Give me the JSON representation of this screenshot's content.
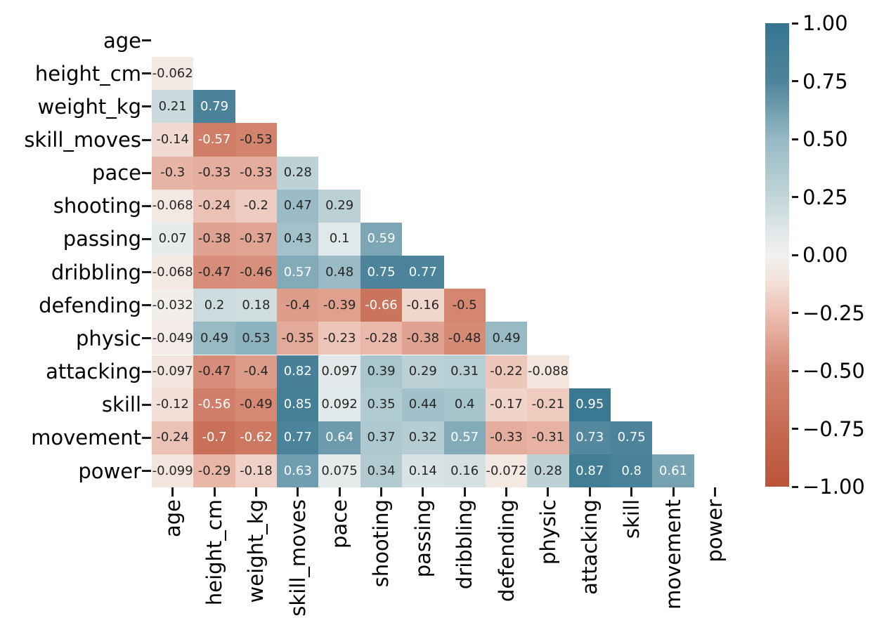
{
  "figure": {
    "background": "#ffffff",
    "text_color": "#000000"
  },
  "chart_data": {
    "type": "heatmap",
    "subtype": "correlation-matrix-lower-triangle",
    "mask": "upper triangle including diagonal is blank",
    "labels": [
      "age",
      "height_cm",
      "weight_kg",
      "skill_moves",
      "pace",
      "shooting",
      "passing",
      "dribbling",
      "defending",
      "physic",
      "attacking",
      "skill",
      "movement",
      "power"
    ],
    "matrix": [
      [],
      [
        "-0.062"
      ],
      [
        "0.21",
        "0.79"
      ],
      [
        "-0.14",
        "-0.57",
        "-0.53"
      ],
      [
        "-0.3",
        "-0.33",
        "-0.33",
        "0.28"
      ],
      [
        "-0.068",
        "-0.24",
        "-0.2",
        "0.47",
        "0.29"
      ],
      [
        "0.07",
        "-0.38",
        "-0.37",
        "0.43",
        "0.1",
        "0.59"
      ],
      [
        "-0.068",
        "-0.47",
        "-0.46",
        "0.57",
        "0.48",
        "0.75",
        "0.77"
      ],
      [
        "-0.032",
        "0.2",
        "0.18",
        "-0.4",
        "-0.39",
        "-0.66",
        "-0.16",
        "-0.5"
      ],
      [
        "-0.049",
        "0.49",
        "0.53",
        "-0.35",
        "-0.23",
        "-0.28",
        "-0.38",
        "-0.48",
        "0.49"
      ],
      [
        "-0.097",
        "-0.47",
        "-0.4",
        "0.82",
        "0.097",
        "0.39",
        "0.29",
        "0.31",
        "-0.22",
        "-0.088"
      ],
      [
        "-0.12",
        "-0.56",
        "-0.49",
        "0.85",
        "0.092",
        "0.35",
        "0.44",
        "0.4",
        "-0.17",
        "-0.21",
        "0.95"
      ],
      [
        "-0.24",
        "-0.7",
        "-0.62",
        "0.77",
        "0.64",
        "0.37",
        "0.32",
        "0.57",
        "-0.33",
        "-0.31",
        "0.73",
        "0.75"
      ],
      [
        "-0.099",
        "-0.29",
        "-0.18",
        "0.63",
        "0.075",
        "0.34",
        "0.14",
        "0.16",
        "-0.072",
        "0.28",
        "0.87",
        "0.8",
        "0.61"
      ]
    ],
    "colorbar": {
      "vmin": -1,
      "vmax": 1,
      "tick_labels": [
        "1.00",
        "0.75",
        "0.50",
        "0.25",
        "0.00",
        "−0.25",
        "−0.50",
        "−0.75",
        "−1.00"
      ],
      "tick_values": [
        1,
        0.75,
        0.5,
        0.25,
        0,
        -0.25,
        -0.5,
        -0.75,
        -1
      ]
    },
    "colormap_anchors": [
      {
        "v": -1.0,
        "color": "#ba5438"
      },
      {
        "v": -0.75,
        "color": "#c66a52"
      },
      {
        "v": -0.5,
        "color": "#d48671"
      },
      {
        "v": -0.25,
        "color": "#edc0b3"
      },
      {
        "v": -0.1,
        "color": "#f3e4dd"
      },
      {
        "v": 0.0,
        "color": "#f2f2f0"
      },
      {
        "v": 0.1,
        "color": "#e1e8e9"
      },
      {
        "v": 0.25,
        "color": "#c2d5d9"
      },
      {
        "v": 0.5,
        "color": "#96b9c4"
      },
      {
        "v": 0.75,
        "color": "#4d849b"
      },
      {
        "v": 1.0,
        "color": "#377691"
      }
    ],
    "annotation_style": {
      "dark_text_color": "#262626",
      "light_text_color": "#ffffff",
      "light_text_abs_threshold": 0.55
    }
  }
}
